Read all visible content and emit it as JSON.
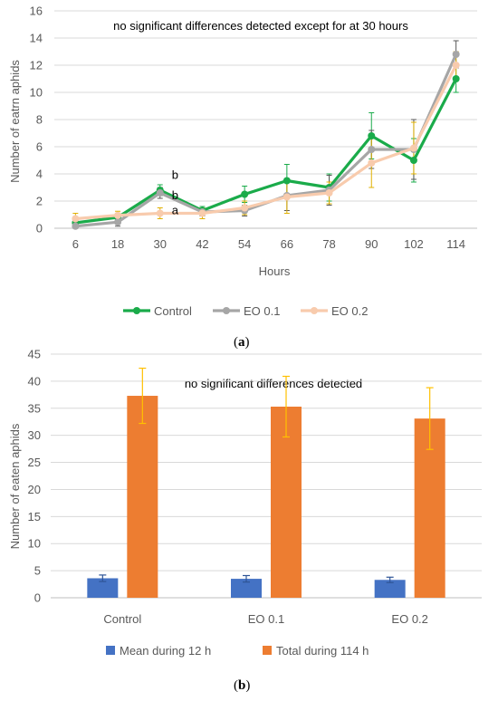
{
  "chart_data": [
    {
      "type": "line",
      "panel_label": "a",
      "title": "no significant differences detected except for at 30 hours",
      "xlabel": "Hours",
      "ylabel": "Number of eatrn aphids",
      "categories": [
        "6",
        "18",
        "30",
        "42",
        "54",
        "66",
        "78",
        "90",
        "102",
        "114"
      ],
      "ylim": [
        0,
        16
      ],
      "yticks": [
        "0",
        "2",
        "4",
        "6",
        "8",
        "10",
        "12",
        "14",
        "16"
      ],
      "grid": true,
      "legend_position": "bottom",
      "series": [
        {
          "name": "Control",
          "color": "#1aab4a",
          "values": [
            0.4,
            0.8,
            2.8,
            1.3,
            2.5,
            3.5,
            3.0,
            6.8,
            5.0,
            11.0
          ],
          "error": [
            0.3,
            0.3,
            0.4,
            0.3,
            0.6,
            1.2,
            1.0,
            1.7,
            1.6,
            1.0
          ]
        },
        {
          "name": "EO 0.1",
          "color": "#a6a6a6",
          "values": [
            0.15,
            0.45,
            2.6,
            1.2,
            1.3,
            2.4,
            2.8,
            5.8,
            5.8,
            12.8
          ],
          "error": [
            0.3,
            0.3,
            0.4,
            0.3,
            0.4,
            1.1,
            1.1,
            1.4,
            2.2,
            1.0
          ]
        },
        {
          "name": "EO 0.2",
          "color": "#f8cbad",
          "values": [
            0.7,
            0.95,
            1.1,
            1.1,
            1.5,
            2.3,
            2.6,
            4.8,
            5.9,
            12.0
          ],
          "error": [
            0.4,
            0.3,
            0.4,
            0.4,
            0.5,
            1.2,
            0.8,
            1.8,
            1.9,
            1.0
          ]
        }
      ],
      "errorbar_colors": [
        "#1aab4a",
        "#595959",
        "#e0b000"
      ],
      "annotations": [
        {
          "text": "b",
          "x": "30",
          "y": 3.9
        },
        {
          "text": "b",
          "x": "30",
          "y": 2.4
        },
        {
          "text": "a",
          "x": "30",
          "y": 1.3
        }
      ]
    },
    {
      "type": "bar",
      "panel_label": "b",
      "title": "no significant differences detected",
      "xlabel": "",
      "ylabel": "Number of eaten aphids",
      "categories": [
        "Control",
        "EO 0.1",
        "EO 0.2"
      ],
      "ylim": [
        0,
        45
      ],
      "yticks": [
        "0",
        "5",
        "10",
        "15",
        "20",
        "25",
        "30",
        "35",
        "40",
        "45"
      ],
      "grid": true,
      "legend_position": "bottom",
      "series": [
        {
          "name": "Mean during 12 h",
          "color": "#4472c4",
          "values": [
            3.6,
            3.5,
            3.3
          ],
          "error": [
            0.6,
            0.6,
            0.5
          ],
          "error_color": "#2f5597"
        },
        {
          "name": "Total during 114 h",
          "color": "#ed7d31",
          "values": [
            37.3,
            35.3,
            33.1
          ],
          "error": [
            5.1,
            5.6,
            5.7
          ],
          "error_color": "#ffc000"
        }
      ]
    }
  ]
}
